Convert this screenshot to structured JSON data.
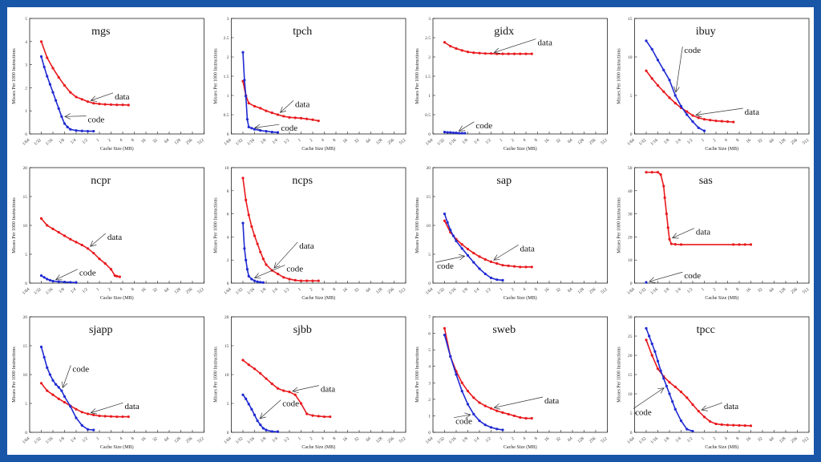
{
  "x_tick_labels": [
    "1/64",
    "1/32",
    "1/16",
    "1/8",
    "1/4",
    "1/2",
    "1",
    "2",
    "4",
    "8",
    "16",
    "32",
    "64",
    "128",
    "256",
    "512"
  ],
  "xlabel": "Cache Size (MB)",
  "ylabel": "Misses Per 1000 Instructions",
  "colors": {
    "data": "#e8191d",
    "code": "#1f2ad1",
    "background": "#1a56a8"
  },
  "chart_data": [
    {
      "type": "line",
      "title": "mgs",
      "ylim": [
        0,
        5
      ],
      "yticks": [
        "0",
        "1",
        "2",
        "3",
        "4",
        "5"
      ],
      "series": [
        {
          "name": "data",
          "x": [
            0.03125,
            0.0442,
            0.0625,
            0.0884,
            0.125,
            0.177,
            0.25,
            0.354,
            0.5,
            0.707,
            1,
            1.41,
            2,
            2.83,
            4,
            5.66
          ],
          "y": [
            4.0,
            3.3,
            2.85,
            2.45,
            2.1,
            1.8,
            1.6,
            1.5,
            1.4,
            1.33,
            1.3,
            1.28,
            1.27,
            1.26,
            1.26,
            1.25
          ]
        },
        {
          "name": "code",
          "x": [
            0.03125,
            0.0372,
            0.0442,
            0.0526,
            0.0625,
            0.0743,
            0.0884,
            0.105,
            0.125,
            0.149,
            0.177,
            0.25,
            0.354,
            0.5,
            0.707
          ],
          "y": [
            3.35,
            2.9,
            2.5,
            2.15,
            1.8,
            1.45,
            1.1,
            0.75,
            0.45,
            0.3,
            0.2,
            0.15,
            0.13,
            0.12,
            0.12
          ]
        }
      ],
      "annotations": [
        {
          "text": "data",
          "x": 2.5,
          "y": 1.5
        },
        {
          "text": "code",
          "x": 0.5,
          "y": 0.5
        }
      ]
    },
    {
      "type": "line",
      "title": "tpch",
      "ylim": [
        0,
        3
      ],
      "yticks": [
        "0",
        "0.5",
        "1",
        "1.5",
        "2",
        "2.5",
        "3"
      ],
      "series": [
        {
          "name": "data",
          "x": [
            0.03125,
            0.0372,
            0.0442,
            0.0625,
            0.0884,
            0.125,
            0.177,
            0.25,
            0.354,
            0.5,
            0.707,
            1,
            1.41,
            2,
            2.83
          ],
          "y": [
            1.37,
            1.0,
            0.8,
            0.72,
            0.67,
            0.6,
            0.55,
            0.5,
            0.46,
            0.43,
            0.42,
            0.41,
            0.39,
            0.37,
            0.34
          ]
        },
        {
          "name": "code",
          "x": [
            0.03125,
            0.0342,
            0.0372,
            0.0405,
            0.0442,
            0.0526,
            0.0625,
            0.0884,
            0.125,
            0.177,
            0.25
          ],
          "y": [
            2.12,
            1.4,
            0.98,
            0.38,
            0.18,
            0.15,
            0.12,
            0.09,
            0.07,
            0.05,
            0.04
          ]
        }
      ],
      "annotations": [
        {
          "text": "data",
          "x": 0.7,
          "y": 0.7
        },
        {
          "text": "code",
          "x": 0.3,
          "y": 0.08
        }
      ]
    },
    {
      "type": "line",
      "title": "gidx",
      "ylim": [
        0,
        3
      ],
      "yticks": [
        "0",
        "0.5",
        "1",
        "1.5",
        "2",
        "2.5",
        "3"
      ],
      "series": [
        {
          "name": "data",
          "x": [
            0.03125,
            0.0442,
            0.0625,
            0.0884,
            0.125,
            0.177,
            0.25,
            0.354,
            0.5,
            0.707,
            1,
            1.41,
            2,
            2.83,
            4,
            5.66
          ],
          "y": [
            2.38,
            2.28,
            2.22,
            2.17,
            2.13,
            2.11,
            2.1,
            2.09,
            2.09,
            2.08,
            2.08,
            2.08,
            2.08,
            2.08,
            2.08,
            2.08
          ]
        },
        {
          "name": "code",
          "x": [
            0.03125,
            0.0372,
            0.0442,
            0.0526,
            0.0625,
            0.0743,
            0.0884,
            0.105
          ],
          "y": [
            0.05,
            0.04,
            0.04,
            0.03,
            0.03,
            0.02,
            0.02,
            0.02
          ]
        }
      ],
      "annotations": [
        {
          "text": "data",
          "x": 8,
          "y": 2.3
        },
        {
          "text": "code",
          "x": 0.2,
          "y": 0.15
        }
      ]
    },
    {
      "type": "line",
      "title": "ibuy",
      "ylim": [
        0,
        15
      ],
      "yticks": [
        "0",
        "5",
        "10",
        "15"
      ],
      "series": [
        {
          "name": "data",
          "x": [
            0.03125,
            0.0442,
            0.0625,
            0.0884,
            0.125,
            0.177,
            0.25,
            0.354,
            0.5,
            0.707,
            1,
            1.41,
            2,
            2.83,
            4,
            5.66
          ],
          "y": [
            8.2,
            7.2,
            6.3,
            5.5,
            4.7,
            4.0,
            3.4,
            2.9,
            2.4,
            2.1,
            1.9,
            1.8,
            1.7,
            1.65,
            1.6,
            1.55
          ]
        },
        {
          "name": "code",
          "x": [
            0.03125,
            0.0442,
            0.0625,
            0.0884,
            0.125,
            0.177,
            0.25,
            0.354,
            0.5,
            0.707,
            1
          ],
          "y": [
            12.1,
            11.0,
            9.6,
            8.3,
            7.0,
            5.0,
            3.6,
            2.5,
            1.6,
            0.8,
            0.4
          ]
        }
      ],
      "annotations": [
        {
          "text": "data",
          "x": 11,
          "y": 2.5
        },
        {
          "text": "code",
          "x": 0.3,
          "y": 10.5
        }
      ]
    },
    {
      "type": "line",
      "title": "ncpr",
      "ylim": [
        0,
        20
      ],
      "yticks": [
        "0",
        "5",
        "10",
        "15",
        "20"
      ],
      "series": [
        {
          "name": "data",
          "x": [
            0.03125,
            0.0442,
            0.0625,
            0.0884,
            0.125,
            0.177,
            0.25,
            0.354,
            0.5,
            0.707,
            1,
            1.41,
            2,
            2.52,
            2.83,
            3.36
          ],
          "y": [
            11.2,
            10.0,
            9.4,
            8.8,
            8.2,
            7.6,
            7.1,
            6.6,
            6.0,
            5.2,
            4.2,
            3.4,
            2.4,
            1.3,
            1.2,
            1.1
          ]
        },
        {
          "name": "code",
          "x": [
            0.03125,
            0.0372,
            0.0442,
            0.0526,
            0.0625,
            0.0884,
            0.125,
            0.177,
            0.25
          ],
          "y": [
            1.3,
            1.0,
            0.7,
            0.5,
            0.35,
            0.25,
            0.2,
            0.15,
            0.1
          ]
        }
      ],
      "annotations": [
        {
          "text": "data",
          "x": 1.6,
          "y": 7.5
        },
        {
          "text": "code",
          "x": 0.3,
          "y": 1.3
        }
      ]
    },
    {
      "type": "line",
      "title": "ncps",
      "ylim": [
        0,
        10
      ],
      "yticks": [
        "0",
        "2",
        "4",
        "6",
        "8",
        "10"
      ],
      "series": [
        {
          "name": "data",
          "x": [
            0.03125,
            0.0372,
            0.0442,
            0.0526,
            0.0625,
            0.0743,
            0.0884,
            0.105,
            0.125,
            0.177,
            0.25,
            0.354,
            0.5,
            0.707,
            1,
            1.41,
            2,
            2.83
          ],
          "y": [
            9.1,
            7.2,
            5.9,
            4.9,
            4.1,
            3.4,
            2.7,
            2.1,
            1.6,
            1.1,
            0.8,
            0.5,
            0.35,
            0.25,
            0.2,
            0.2,
            0.2,
            0.2
          ]
        },
        {
          "name": "code",
          "x": [
            0.03125,
            0.0342,
            0.0372,
            0.0405,
            0.0442,
            0.0526,
            0.0625,
            0.0743,
            0.0884,
            0.105
          ],
          "y": [
            5.2,
            3.0,
            2.0,
            1.2,
            0.6,
            0.35,
            0.2,
            0.12,
            0.08,
            0.05
          ]
        }
      ],
      "annotations": [
        {
          "text": "data",
          "x": 0.9,
          "y": 3.0
        },
        {
          "text": "code",
          "x": 0.42,
          "y": 1.0
        }
      ]
    },
    {
      "type": "line",
      "title": "sap",
      "ylim": [
        0,
        20
      ],
      "yticks": [
        "0",
        "5",
        "10",
        "15",
        "20"
      ],
      "series": [
        {
          "name": "data",
          "x": [
            0.03125,
            0.0442,
            0.0625,
            0.0884,
            0.125,
            0.177,
            0.25,
            0.354,
            0.5,
            0.707,
            1,
            1.41,
            2,
            2.83,
            4,
            5.66
          ],
          "y": [
            10.8,
            8.8,
            7.6,
            6.7,
            5.9,
            5.2,
            4.6,
            4.1,
            3.7,
            3.4,
            3.1,
            3.0,
            2.9,
            2.8,
            2.8,
            2.8
          ]
        },
        {
          "name": "code",
          "x": [
            0.03125,
            0.0372,
            0.0442,
            0.0526,
            0.0625,
            0.0884,
            0.125,
            0.177,
            0.25,
            0.354,
            0.5,
            0.707,
            1
          ],
          "y": [
            12.0,
            10.5,
            9.2,
            8.2,
            7.3,
            6.0,
            4.8,
            3.6,
            2.5,
            1.6,
            0.9,
            0.6,
            0.5
          ]
        }
      ],
      "annotations": [
        {
          "text": "data",
          "x": 2.8,
          "y": 5.5
        },
        {
          "text": "code",
          "x": 0.02,
          "y": 2.5
        }
      ]
    },
    {
      "type": "line",
      "title": "sas",
      "ylim": [
        0,
        50
      ],
      "yticks": [
        "0",
        "10",
        "20",
        "30",
        "40",
        "50"
      ],
      "series": [
        {
          "name": "data",
          "x": [
            0.03125,
            0.0442,
            0.0625,
            0.0743,
            0.0884,
            0.0945,
            0.105,
            0.115,
            0.125,
            0.14,
            0.177,
            0.25,
            5.66,
            8,
            11.3,
            16
          ],
          "y": [
            48,
            48,
            48,
            47,
            42,
            37,
            30,
            24,
            19,
            17,
            16.8,
            16.7,
            16.7,
            16.7,
            16.7,
            16.7
          ]
        },
        {
          "name": "code",
          "x": [
            0.03125
          ],
          "y": [
            0.3
          ]
        }
      ],
      "annotations": [
        {
          "text": "data",
          "x": 0.6,
          "y": 21
        },
        {
          "text": "code",
          "x": 0.3,
          "y": 2
        }
      ]
    },
    {
      "type": "line",
      "title": "sjapp",
      "ylim": [
        0,
        20
      ],
      "yticks": [
        "0",
        "5",
        "10",
        "15",
        "20"
      ],
      "series": [
        {
          "name": "data",
          "x": [
            0.03125,
            0.0442,
            0.0625,
            0.0884,
            0.125,
            0.177,
            0.25,
            0.354,
            0.5,
            0.707,
            1,
            1.41,
            2,
            2.83,
            4,
            5.66
          ],
          "y": [
            8.5,
            7.2,
            6.5,
            5.8,
            5.2,
            4.6,
            4.0,
            3.5,
            3.2,
            3.0,
            2.85,
            2.8,
            2.75,
            2.7,
            2.7,
            2.7
          ]
        },
        {
          "name": "code",
          "x": [
            0.03125,
            0.0372,
            0.0442,
            0.0526,
            0.0625,
            0.0743,
            0.0884,
            0.105,
            0.125,
            0.177,
            0.25,
            0.354,
            0.5,
            0.707
          ],
          "y": [
            14.8,
            13.0,
            11.2,
            10.0,
            9.0,
            8.3,
            7.8,
            7.2,
            6.2,
            4.5,
            2.5,
            1.2,
            0.5,
            0.4
          ]
        }
      ],
      "annotations": [
        {
          "text": "data",
          "x": 4.5,
          "y": 4.0
        },
        {
          "text": "code",
          "x": 0.2,
          "y": 10.5
        }
      ]
    },
    {
      "type": "line",
      "title": "sjbb",
      "ylim": [
        0,
        20
      ],
      "yticks": [
        "0",
        "5",
        "10",
        "15",
        "20"
      ],
      "series": [
        {
          "name": "data",
          "x": [
            0.03125,
            0.0442,
            0.0625,
            0.0884,
            0.125,
            0.177,
            0.25,
            0.354,
            0.5,
            0.707,
            1,
            1.41,
            2,
            2.83,
            4,
            5.66
          ],
          "y": [
            12.5,
            11.7,
            11.0,
            10.2,
            9.3,
            8.4,
            7.6,
            7.2,
            7.0,
            6.5,
            5.0,
            3.2,
            2.9,
            2.8,
            2.7,
            2.7
          ]
        },
        {
          "name": "code",
          "x": [
            0.03125,
            0.0372,
            0.0442,
            0.0526,
            0.0625,
            0.0743,
            0.0884,
            0.105,
            0.125,
            0.177,
            0.25
          ],
          "y": [
            6.5,
            5.8,
            4.9,
            4.0,
            3.0,
            2.0,
            1.3,
            0.7,
            0.4,
            0.15,
            0.1
          ]
        }
      ],
      "annotations": [
        {
          "text": "data",
          "x": 3.2,
          "y": 7.0
        },
        {
          "text": "code",
          "x": 0.33,
          "y": 4.5
        }
      ]
    },
    {
      "type": "line",
      "title": "sweb",
      "ylim": [
        0,
        7
      ],
      "yticks": [
        "0",
        "1",
        "2",
        "3",
        "4",
        "5",
        "6",
        "7"
      ],
      "series": [
        {
          "name": "data",
          "x": [
            0.03125,
            0.0442,
            0.0625,
            0.0884,
            0.125,
            0.177,
            0.25,
            0.354,
            0.5,
            0.707,
            1,
            1.41,
            2,
            2.83,
            4,
            5.66
          ],
          "y": [
            6.3,
            4.6,
            3.7,
            3.0,
            2.5,
            2.1,
            1.8,
            1.6,
            1.45,
            1.3,
            1.2,
            1.1,
            1.0,
            0.9,
            0.85,
            0.85
          ]
        },
        {
          "name": "code",
          "x": [
            0.03125,
            0.0442,
            0.0625,
            0.0884,
            0.125,
            0.177,
            0.25,
            0.354,
            0.5,
            0.707,
            1
          ],
          "y": [
            5.9,
            4.6,
            3.5,
            2.5,
            1.7,
            1.1,
            0.7,
            0.45,
            0.3,
            0.2,
            0.15
          ]
        }
      ],
      "annotations": [
        {
          "text": "data",
          "x": 12,
          "y": 1.75
        },
        {
          "text": "code",
          "x": 0.06,
          "y": 0.5
        }
      ]
    },
    {
      "type": "line",
      "title": "tpcc",
      "ylim": [
        0,
        30
      ],
      "yticks": [
        "0",
        "5",
        "10",
        "15",
        "20",
        "25",
        "30"
      ],
      "series": [
        {
          "name": "data",
          "x": [
            0.03125,
            0.0442,
            0.0625,
            0.0884,
            0.125,
            0.177,
            0.25,
            0.354,
            0.5,
            0.707,
            1,
            1.41,
            2,
            2.83,
            4,
            5.66,
            8,
            11.3,
            16
          ],
          "y": [
            24.0,
            20.0,
            16.5,
            14.5,
            13.0,
            11.8,
            10.5,
            9.0,
            7.2,
            5.5,
            4.0,
            2.8,
            2.2,
            2.0,
            1.9,
            1.85,
            1.8,
            1.75,
            1.7
          ]
        },
        {
          "name": "code",
          "x": [
            0.03125,
            0.0372,
            0.0442,
            0.0526,
            0.0625,
            0.0743,
            0.0884,
            0.105,
            0.125,
            0.149,
            0.177,
            0.25,
            0.354,
            0.5
          ],
          "y": [
            27.0,
            25.0,
            23.0,
            21.0,
            18.5,
            16.0,
            14.0,
            12.0,
            10.0,
            8.0,
            6.0,
            3.0,
            0.8,
            0.3
          ]
        }
      ],
      "annotations": [
        {
          "text": "data",
          "x": 3.2,
          "y": 6.0
        },
        {
          "text": "code",
          "x": 0.016,
          "y": 4.5
        }
      ]
    }
  ]
}
